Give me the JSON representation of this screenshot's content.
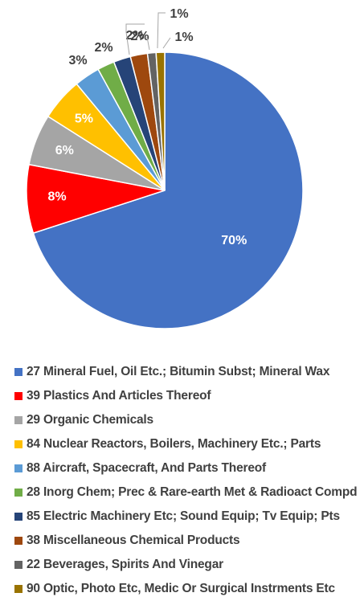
{
  "chart_data": {
    "type": "pie",
    "title": "",
    "legend_position": "bottom",
    "start_angle_deg": 0,
    "direction": "clockwise",
    "slices": [
      {
        "label": "27 Mineral Fuel, Oil Etc.; Bitumin Subst; Mineral Wax",
        "value": 70,
        "display": "70%",
        "color": "#4472C4",
        "label_position": "inside"
      },
      {
        "label": "39 Plastics And Articles Thereof",
        "value": 8,
        "display": "8%",
        "color": "#FF0000",
        "label_position": "inside"
      },
      {
        "label": "29 Organic Chemicals",
        "value": 6,
        "display": "6%",
        "color": "#A5A5A5",
        "label_position": "inside"
      },
      {
        "label": "84 Nuclear Reactors, Boilers, Machinery Etc.; Parts",
        "value": 5,
        "display": "5%",
        "color": "#FFC000",
        "label_position": "inside"
      },
      {
        "label": "88 Aircraft, Spacecraft, And Parts Thereof",
        "value": 3,
        "display": "3%",
        "color": "#5B9BD5",
        "label_position": "outside"
      },
      {
        "label": "28 Inorg Chem; Prec & Rare-earth Met & Radioact Compd",
        "value": 2,
        "display": "2%",
        "color": "#70AD47",
        "label_position": "outside"
      },
      {
        "label": "85 Electric Machinery Etc; Sound Equip; Tv Equip; Pts",
        "value": 2,
        "display": "2%",
        "color": "#264478",
        "label_position": "outside"
      },
      {
        "label": "38 Miscellaneous Chemical Products",
        "value": 2,
        "display": "2%",
        "color": "#9E480E",
        "label_position": "outside"
      },
      {
        "label": "22 Beverages, Spirits And Vinegar",
        "value": 1,
        "display": "1%",
        "color": "#636363",
        "label_position": "outside"
      },
      {
        "label": "90 Optic, Photo Etc, Medic Or Surgical Instrments Etc",
        "value": 1,
        "display": "1%",
        "color": "#997300",
        "label_position": "outside"
      }
    ]
  }
}
